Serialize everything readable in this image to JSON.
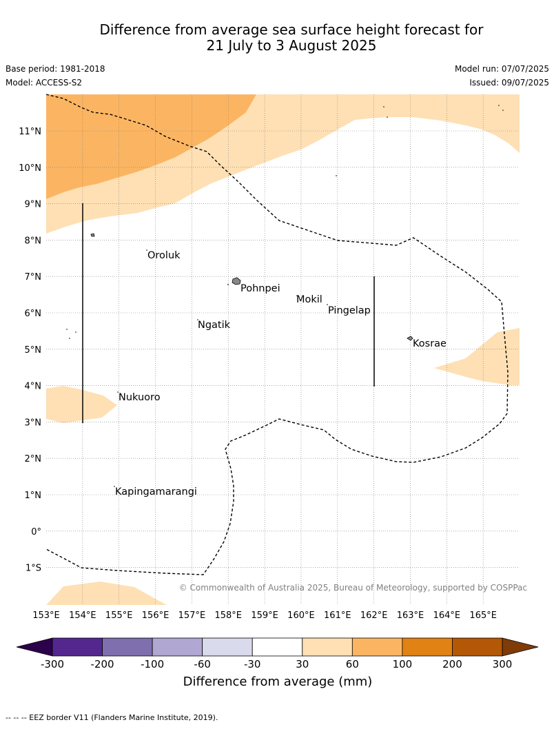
{
  "title_line1": "Difference from average sea surface height forecast for",
  "title_line2": "21 July to 3 August 2025",
  "base_period": "Base period: 1981-2018",
  "model": "Model: ACCESS-S2",
  "model_run": "Model run: 07/07/2025",
  "issued": "Issued: 09/07/2025",
  "lat_labels": [
    "11°N",
    "10°N",
    "9°N",
    "8°N",
    "7°N",
    "6°N",
    "5°N",
    "4°N",
    "3°N",
    "2°N",
    "1°N",
    "0°",
    "1°S"
  ],
  "lon_labels": [
    "153°E",
    "154°E",
    "155°E",
    "156°E",
    "157°E",
    "158°E",
    "159°E",
    "160°E",
    "161°E",
    "162°E",
    "163°E",
    "164°E",
    "165°E"
  ],
  "places": [
    "Oroluk",
    "Pohnpei",
    "Mokil",
    "Pingelap",
    "Ngatik",
    "Kosrae",
    "Nukuoro",
    "Kapingamarangi"
  ],
  "copyright": "© Commonwealth of Australia 2025, Bureau of Meteorology, supported by COSPPac",
  "colorbar": {
    "ticks": [
      "-300",
      "-200",
      "-100",
      "-60",
      "-30",
      "30",
      "60",
      "100",
      "200",
      "300"
    ],
    "label": "Difference from average (mm)",
    "colors": [
      "#54278f",
      "#7f6fae",
      "#b0a8d2",
      "#d9daec",
      "#ffffff",
      "#fee0b4",
      "#fbb562",
      "#e08214",
      "#b35806"
    ],
    "under_color": "#2d004b",
    "over_color": "#7f3b08"
  },
  "footer": "-- -- -- EEZ border V11 (Flanders Marine Institute, 2019)."
}
